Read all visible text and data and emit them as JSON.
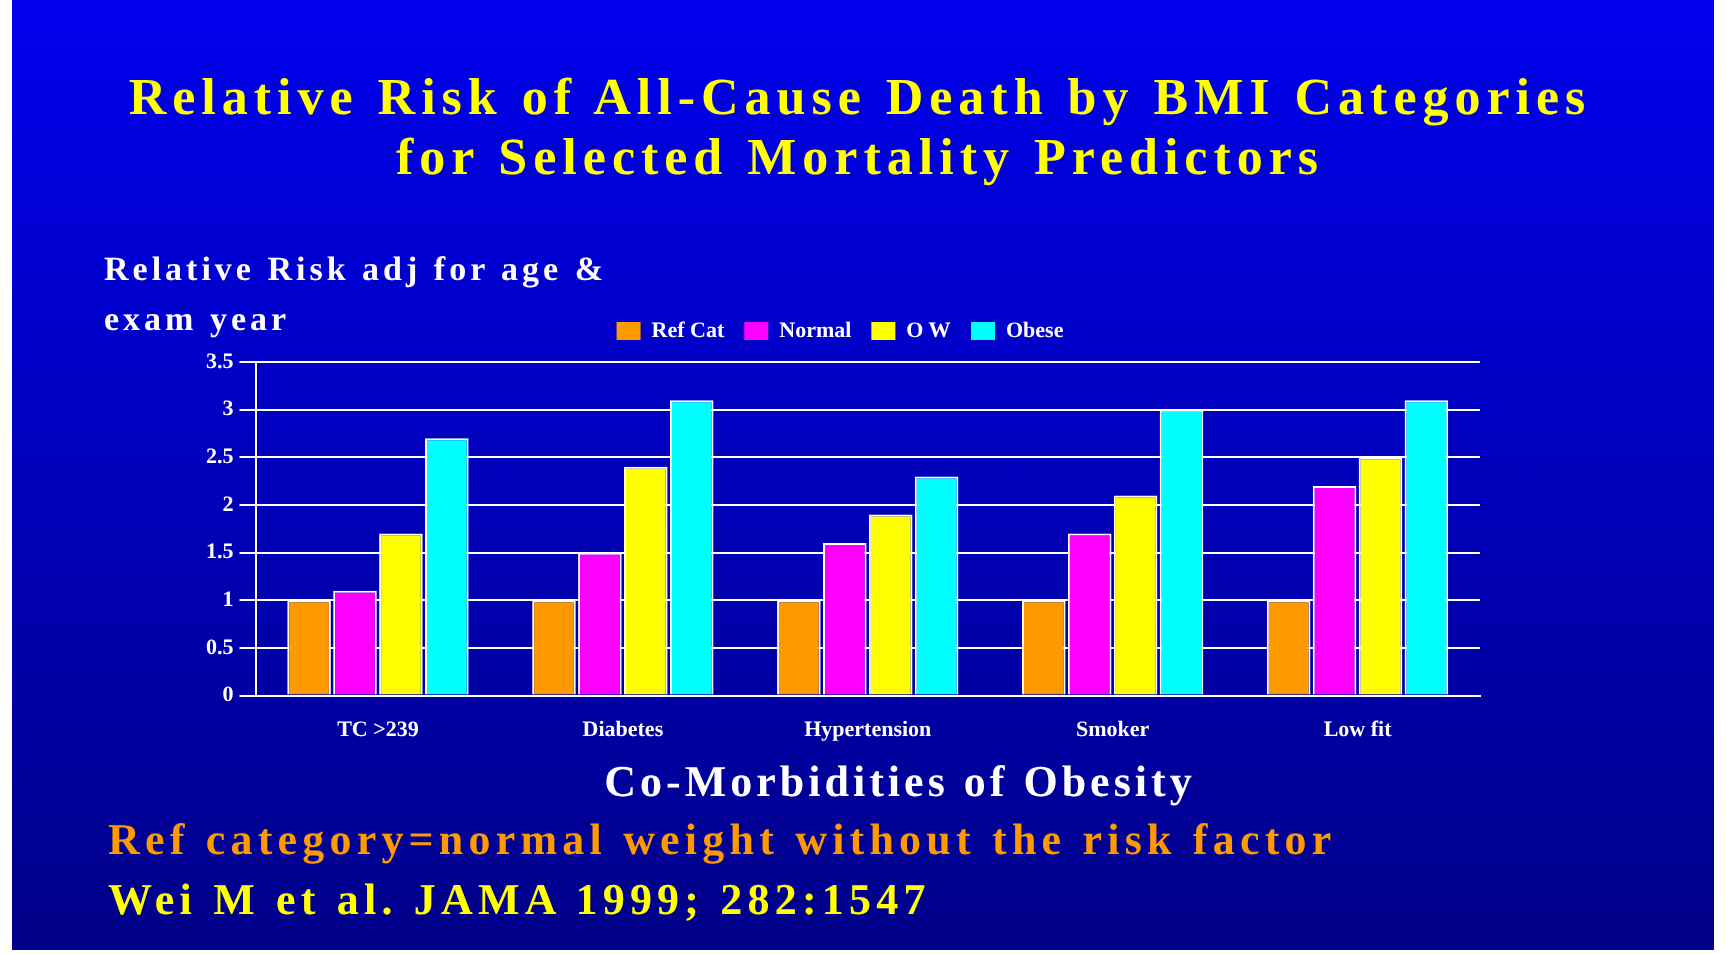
{
  "chart_data": {
    "type": "bar",
    "title": "Relative Risk of All-Cause Death by BMI Categories for Selected Mortality Predictors",
    "ylabel": "Relative Risk adj for age & exam year",
    "xlabel": "Co-Morbidities of Obesity",
    "categories": [
      "TC >239",
      "Diabetes",
      "Hypertension",
      "Smoker",
      "Low fit"
    ],
    "series": [
      {
        "name": "Ref Cat",
        "color": "#ff9900",
        "values": [
          1,
          1,
          1,
          1,
          1
        ]
      },
      {
        "name": "Normal",
        "color": "#ff00ff",
        "values": [
          1.1,
          1.5,
          1.6,
          1.7,
          2.2
        ]
      },
      {
        "name": "O W",
        "color": "#ffff00",
        "values": [
          1.7,
          2.4,
          1.9,
          2.1,
          2.5
        ]
      },
      {
        "name": "Obese",
        "color": "#00ffff",
        "values": [
          2.7,
          3.1,
          2.3,
          3.0,
          3.1
        ]
      }
    ],
    "ylim": [
      0,
      3.5
    ],
    "yticks": [
      0,
      0.5,
      1,
      1.5,
      2,
      2.5,
      3,
      3.5
    ],
    "grid": "y",
    "legend": "top",
    "annotations": [
      "Ref category=normal weight without the risk factor",
      "Wei M et al. JAMA 1999; 282:1547"
    ]
  }
}
